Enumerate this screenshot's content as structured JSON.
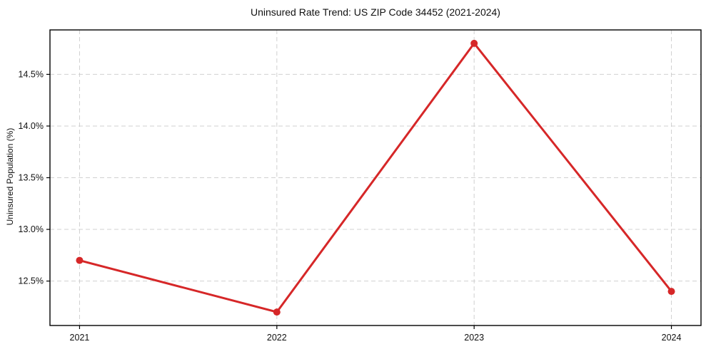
{
  "figure": {
    "background": "#ffffff"
  },
  "chart_data": {
    "type": "line",
    "title": "Uninsured Rate Trend: US ZIP Code 34452 (2021-2024)",
    "xlabel": "",
    "ylabel": "Uninsured Population (%)",
    "x": [
      2021,
      2022,
      2023,
      2024
    ],
    "y": [
      12.7,
      12.2,
      14.8,
      12.4
    ],
    "xticks": [
      2021,
      2022,
      2023,
      2024
    ],
    "xtick_labels": [
      "2021",
      "2022",
      "2023",
      "2024"
    ],
    "yticks": [
      12.5,
      13.0,
      13.5,
      14.0,
      14.5
    ],
    "ytick_labels": [
      "12.5%",
      "13.0%",
      "13.5%",
      "14.0%",
      "14.5%"
    ],
    "xlim": [
      2020.85,
      2024.15
    ],
    "ylim": [
      12.07,
      14.93
    ],
    "grid": true,
    "grid_style": "dashed",
    "legend_position": "none",
    "line_color": "#d62728",
    "marker": "circle",
    "marker_radius": 5,
    "line_width": 3,
    "grid_color": "#cccccc",
    "spine_color": "#000000",
    "tick_color": "#000000"
  }
}
